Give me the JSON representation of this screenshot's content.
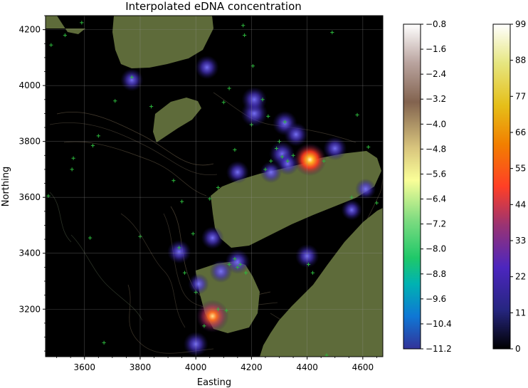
{
  "chart_data": {
    "type": "heatmap",
    "title": "Interpolated eDNA concentration",
    "xlabel": "Easting",
    "ylabel": "Northing",
    "xlim": [
      3460,
      4672
    ],
    "ylim": [
      3030,
      4250
    ],
    "x_ticks": [
      "3600",
      "3800",
      "4000",
      "4200",
      "4400",
      "4600"
    ],
    "y_ticks": [
      "3200",
      "3400",
      "3600",
      "3800",
      "4000",
      "4200"
    ],
    "grid": true,
    "colorbar_bathymetry": {
      "colormap": "terrain",
      "range": [
        -11.2,
        -0.8
      ],
      "tick_labels": [
        "−0.8",
        "−1.6",
        "−2.4",
        "−3.2",
        "−4.0",
        "−4.8",
        "−5.6",
        "−6.4",
        "−7.2",
        "−8.0",
        "−8.8",
        "−9.6",
        "−10.4",
        "−11.2"
      ]
    },
    "colorbar_concentration": {
      "colormap": "CMRmap",
      "range": [
        0,
        99
      ],
      "tick_labels": [
        "99",
        "88",
        "77",
        "66",
        "55",
        "44",
        "33",
        "22",
        "11",
        "0"
      ]
    },
    "land_color": "#5e6b3a",
    "water_color": "#000000",
    "sample_marker_color": "#2db83d",
    "hotspots": [
      {
        "x": 4410,
        "y": 3735,
        "value": 92
      },
      {
        "x": 4060,
        "y": 3175,
        "value": 62
      },
      {
        "x": 4210,
        "y": 3900,
        "value": 28
      },
      {
        "x": 4210,
        "y": 3950,
        "value": 25
      },
      {
        "x": 4040,
        "y": 4065,
        "value": 22
      },
      {
        "x": 3770,
        "y": 4020,
        "value": 20
      },
      {
        "x": 4320,
        "y": 3865,
        "value": 24
      },
      {
        "x": 4360,
        "y": 3825,
        "value": 22
      },
      {
        "x": 4310,
        "y": 3755,
        "value": 26
      },
      {
        "x": 4330,
        "y": 3720,
        "value": 20
      },
      {
        "x": 4270,
        "y": 3690,
        "value": 18
      },
      {
        "x": 4150,
        "y": 3690,
        "value": 20
      },
      {
        "x": 4500,
        "y": 3775,
        "value": 22
      },
      {
        "x": 4610,
        "y": 3630,
        "value": 16
      },
      {
        "x": 4560,
        "y": 3555,
        "value": 16
      },
      {
        "x": 4060,
        "y": 3455,
        "value": 20
      },
      {
        "x": 3940,
        "y": 3405,
        "value": 22
      },
      {
        "x": 4150,
        "y": 3370,
        "value": 24
      },
      {
        "x": 4090,
        "y": 3335,
        "value": 20
      },
      {
        "x": 4400,
        "y": 3390,
        "value": 22
      },
      {
        "x": 4000,
        "y": 3075,
        "value": 24
      },
      {
        "x": 4010,
        "y": 3290,
        "value": 16
      }
    ],
    "sample_points": [
      [
        3480,
        4145
      ],
      [
        3530,
        4180
      ],
      [
        3590,
        4225
      ],
      [
        3770,
        4030
      ],
      [
        3840,
        3925
      ],
      [
        3710,
        3945
      ],
      [
        3650,
        3820
      ],
      [
        3630,
        3785
      ],
      [
        3560,
        3740
      ],
      [
        3555,
        3700
      ],
      [
        3470,
        3605
      ],
      [
        3620,
        3455
      ],
      [
        3670,
        3080
      ],
      [
        3920,
        3660
      ],
      [
        3950,
        3585
      ],
      [
        3990,
        3470
      ],
      [
        3940,
        3420
      ],
      [
        3800,
        3460
      ],
      [
        4170,
        4215
      ],
      [
        4175,
        4180
      ],
      [
        4205,
        4070
      ],
      [
        4120,
        3990
      ],
      [
        4100,
        3940
      ],
      [
        4240,
        3950
      ],
      [
        4260,
        3890
      ],
      [
        4200,
        3860
      ],
      [
        4320,
        3870
      ],
      [
        4300,
        3800
      ],
      [
        4290,
        3775
      ],
      [
        4310,
        3745
      ],
      [
        4330,
        3730
      ],
      [
        4350,
        3750
      ],
      [
        4270,
        3730
      ],
      [
        4250,
        3700
      ],
      [
        4140,
        3770
      ],
      [
        4460,
        3730
      ],
      [
        4490,
        4190
      ],
      [
        4580,
        3895
      ],
      [
        4620,
        3780
      ],
      [
        4560,
        3600
      ],
      [
        4650,
        3580
      ],
      [
        4080,
        3635
      ],
      [
        4050,
        3595
      ],
      [
        4140,
        3380
      ],
      [
        4150,
        3350
      ],
      [
        4180,
        3330
      ],
      [
        4160,
        3360
      ],
      [
        4120,
        3360
      ],
      [
        4000,
        3260
      ],
      [
        4080,
        3200
      ],
      [
        4110,
        3195
      ],
      [
        4030,
        3140
      ],
      [
        4405,
        3360
      ],
      [
        4420,
        3330
      ],
      [
        4470,
        3035
      ],
      [
        3960,
        3330
      ]
    ]
  }
}
